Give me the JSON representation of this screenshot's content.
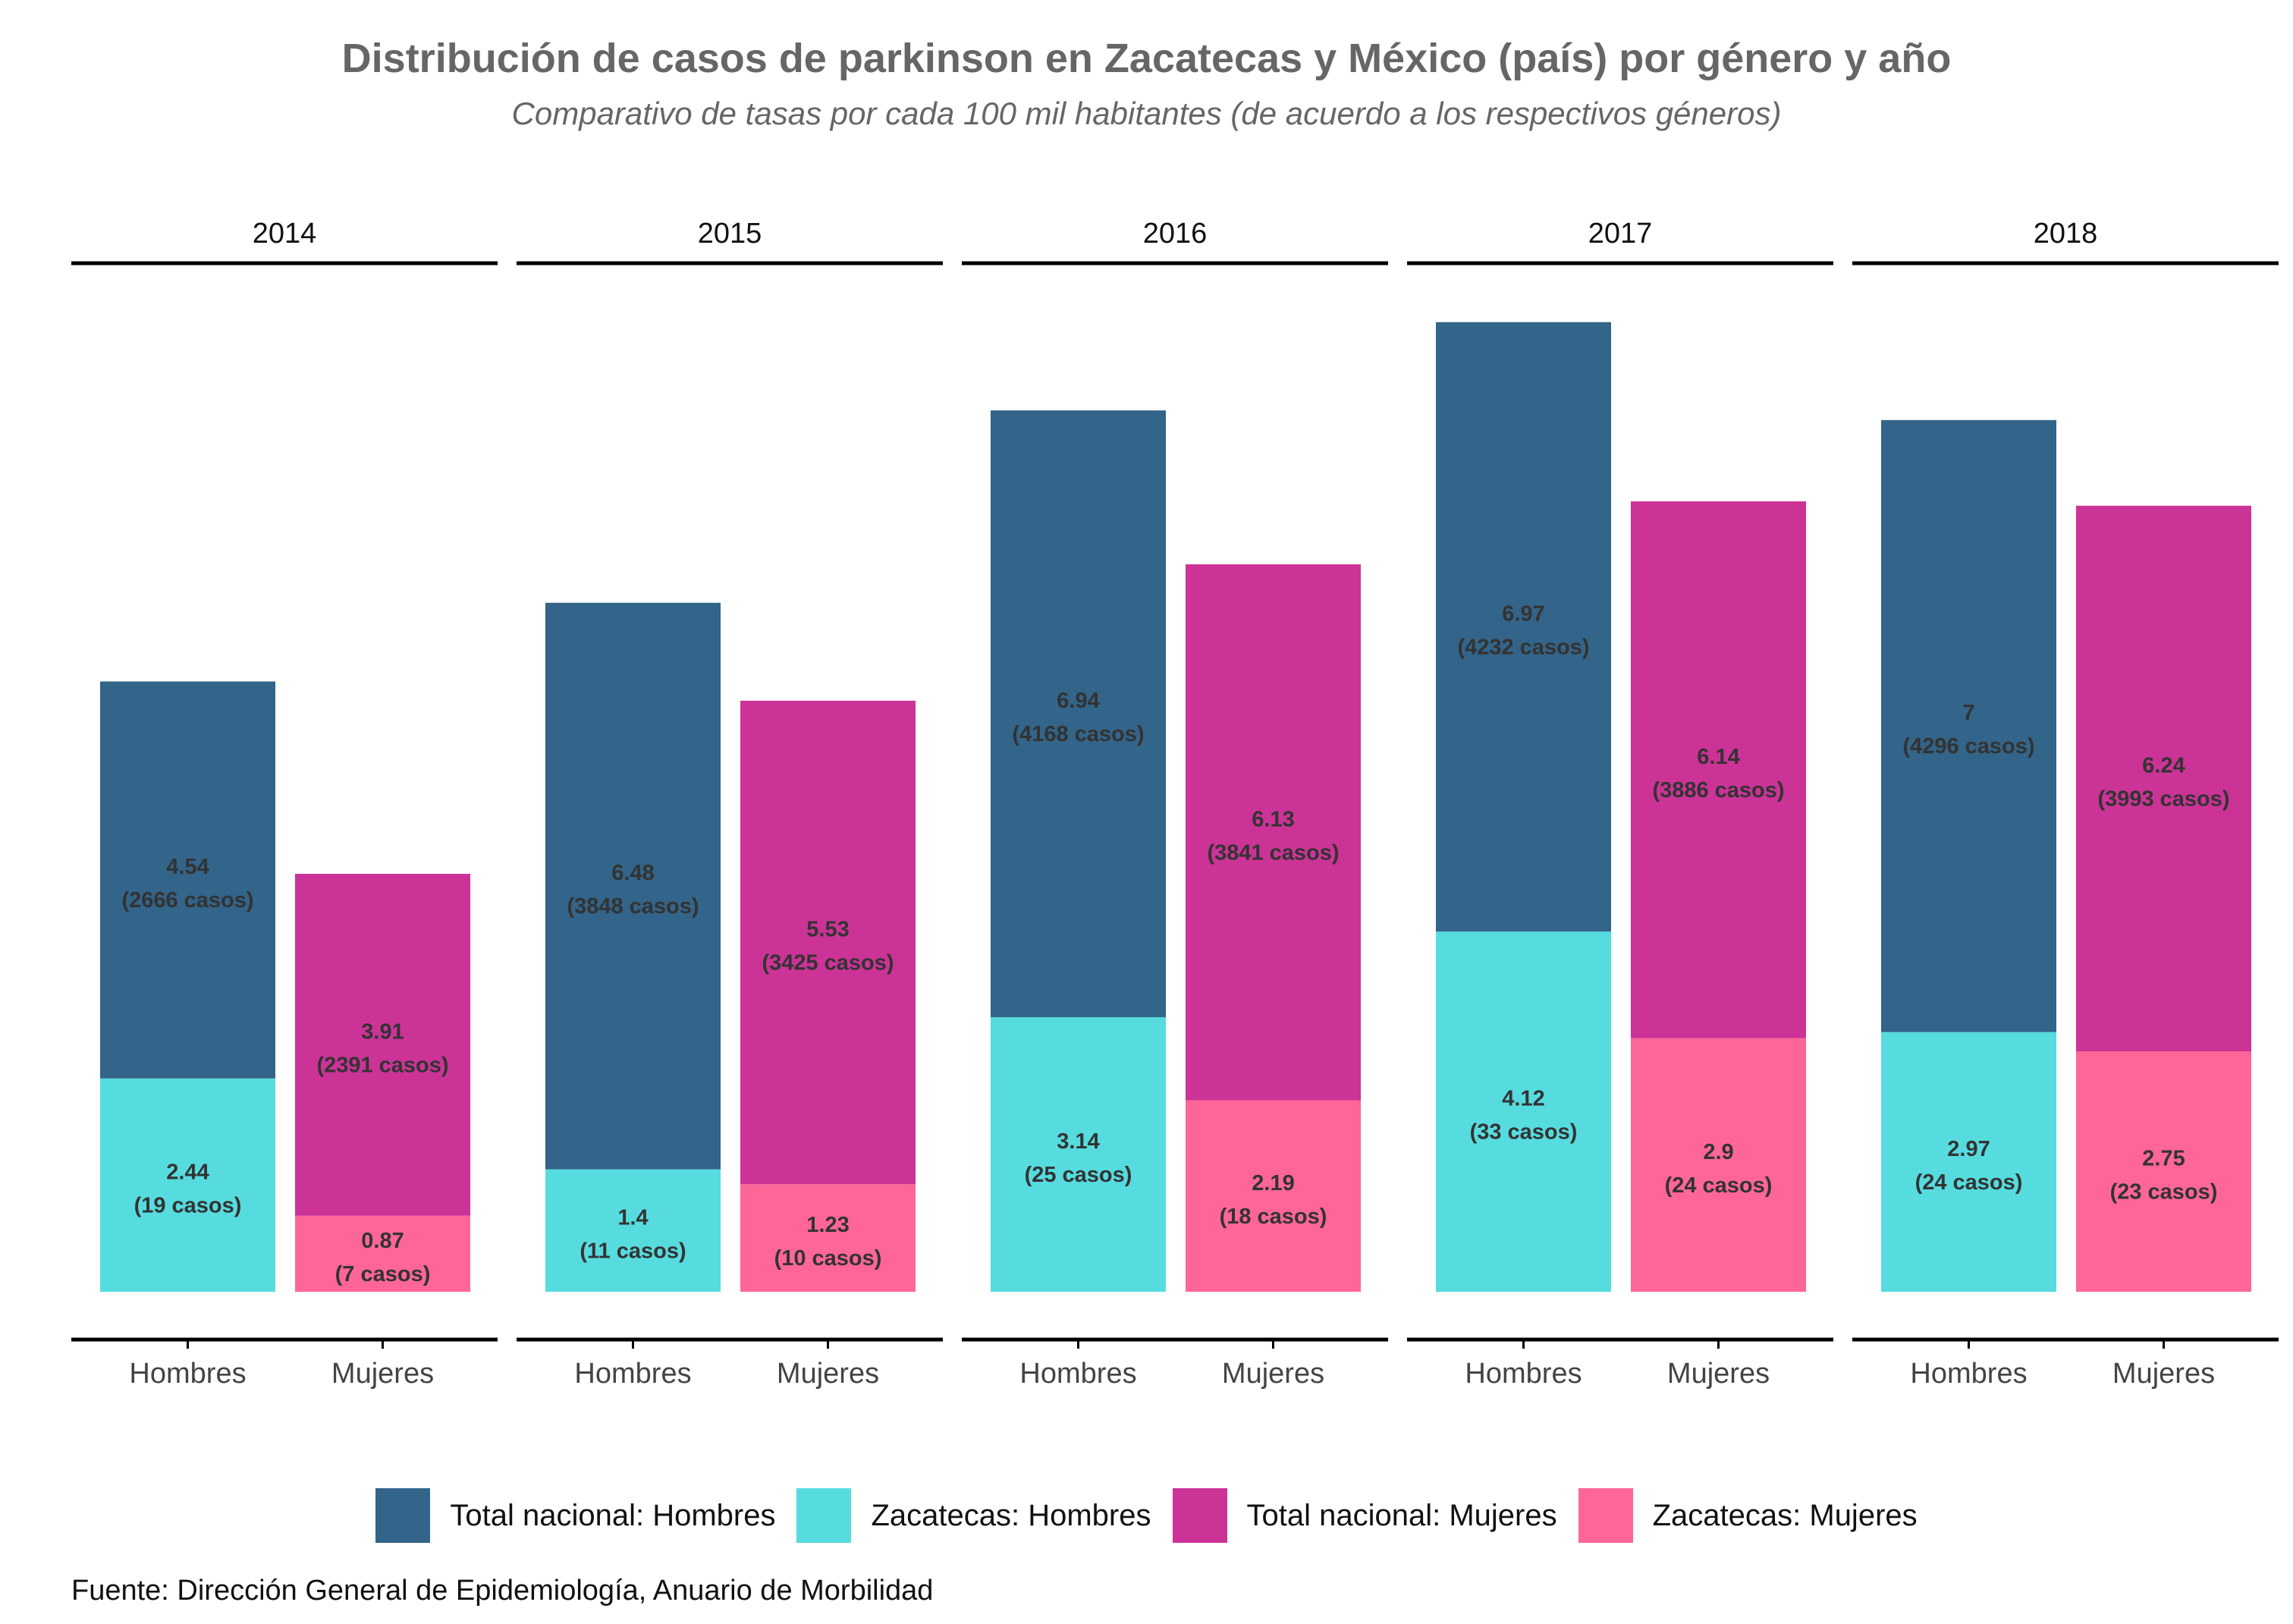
{
  "chart_data": {
    "type": "bar",
    "stacked": true,
    "faceted_by": "year",
    "title": "Distribución de casos de parkinson en Zacatecas y México (país) por género y año",
    "subtitle": "Comparativo de tasas por cada 100 mil habitantes (de acuerdo a los respectivos géneros)",
    "caption": "Fuente: Dirección General de Epidemiología, Anuario de Morbilidad",
    "categories": [
      "Hombres",
      "Mujeres"
    ],
    "legend_position": "bottom",
    "grid": false,
    "y_axis_visible": false,
    "ylim": [
      0,
      11.2
    ],
    "colors": {
      "nac_hombres": "#336489",
      "zac_hombres": "#56dcde",
      "nac_mujeres": "#cc3397",
      "zac_mujeres": "#fe6698",
      "label_text": "#333333"
    },
    "legend": [
      {
        "key": "nac_hombres",
        "label": "Total nacional: Hombres"
      },
      {
        "key": "zac_hombres",
        "label": "Zacatecas: Hombres"
      },
      {
        "key": "nac_mujeres",
        "label": "Total nacional: Mujeres"
      },
      {
        "key": "zac_mujeres",
        "label": "Zacatecas: Mujeres"
      }
    ],
    "facets": [
      {
        "year": "2014",
        "bars": [
          {
            "category": "Hombres",
            "segments": [
              {
                "key": "zac_hombres",
                "value": 2.44,
                "label": "2.44",
                "cases": "(19 casos)"
              },
              {
                "key": "nac_hombres",
                "value": 4.54,
                "label": "4.54",
                "cases": "(2666 casos)"
              }
            ]
          },
          {
            "category": "Mujeres",
            "segments": [
              {
                "key": "zac_mujeres",
                "value": 0.87,
                "label": "0.87",
                "cases": "(7 casos)"
              },
              {
                "key": "nac_mujeres",
                "value": 3.91,
                "label": "3.91",
                "cases": "(2391 casos)"
              }
            ]
          }
        ]
      },
      {
        "year": "2015",
        "bars": [
          {
            "category": "Hombres",
            "segments": [
              {
                "key": "zac_hombres",
                "value": 1.4,
                "label": "1.4",
                "cases": "(11 casos)"
              },
              {
                "key": "nac_hombres",
                "value": 6.48,
                "label": "6.48",
                "cases": "(3848 casos)"
              }
            ]
          },
          {
            "category": "Mujeres",
            "segments": [
              {
                "key": "zac_mujeres",
                "value": 1.23,
                "label": "1.23",
                "cases": "(10 casos)"
              },
              {
                "key": "nac_mujeres",
                "value": 5.53,
                "label": "5.53",
                "cases": "(3425 casos)"
              }
            ]
          }
        ]
      },
      {
        "year": "2016",
        "bars": [
          {
            "category": "Hombres",
            "segments": [
              {
                "key": "zac_hombres",
                "value": 3.14,
                "label": "3.14",
                "cases": "(25 casos)"
              },
              {
                "key": "nac_hombres",
                "value": 6.94,
                "label": "6.94",
                "cases": "(4168 casos)"
              }
            ]
          },
          {
            "category": "Mujeres",
            "segments": [
              {
                "key": "zac_mujeres",
                "value": 2.19,
                "label": "2.19",
                "cases": "(18 casos)"
              },
              {
                "key": "nac_mujeres",
                "value": 6.13,
                "label": "6.13",
                "cases": "(3841 casos)"
              }
            ]
          }
        ]
      },
      {
        "year": "2017",
        "bars": [
          {
            "category": "Hombres",
            "segments": [
              {
                "key": "zac_hombres",
                "value": 4.12,
                "label": "4.12",
                "cases": "(33 casos)"
              },
              {
                "key": "nac_hombres",
                "value": 6.97,
                "label": "6.97",
                "cases": "(4232 casos)"
              }
            ]
          },
          {
            "category": "Mujeres",
            "segments": [
              {
                "key": "zac_mujeres",
                "value": 2.9,
                "label": "2.9",
                "cases": "(24 casos)"
              },
              {
                "key": "nac_mujeres",
                "value": 6.14,
                "label": "6.14",
                "cases": "(3886 casos)"
              }
            ]
          }
        ]
      },
      {
        "year": "2018",
        "bars": [
          {
            "category": "Hombres",
            "segments": [
              {
                "key": "zac_hombres",
                "value": 2.97,
                "label": "2.97",
                "cases": "(24 casos)"
              },
              {
                "key": "nac_hombres",
                "value": 7,
                "label": "7",
                "cases": "(4296 casos)"
              }
            ]
          },
          {
            "category": "Mujeres",
            "segments": [
              {
                "key": "zac_mujeres",
                "value": 2.75,
                "label": "2.75",
                "cases": "(23 casos)"
              },
              {
                "key": "nac_mujeres",
                "value": 6.24,
                "label": "6.24",
                "cases": "(3993 casos)"
              }
            ]
          }
        ]
      }
    ]
  }
}
